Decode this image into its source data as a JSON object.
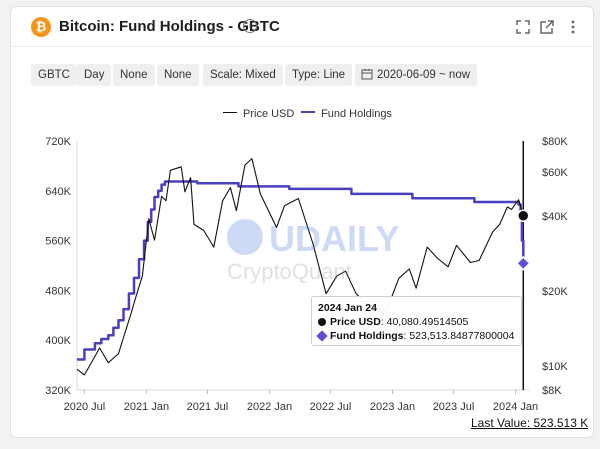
{
  "header": {
    "title": "Bitcoin: Fund Holdings - GBTC",
    "info_glyph": "i",
    "btc_glyph": "₿"
  },
  "filters": [
    "GBTC",
    "Day",
    "None",
    "None",
    "Scale: Mixed",
    "Type: Line",
    "2020-06-09 ~ now"
  ],
  "legend": [
    {
      "label": "Price USD",
      "color": "#111111"
    },
    {
      "label": "Fund Holdings",
      "color": "#4a3fbf"
    }
  ],
  "watermark": {
    "brand": "UDAILY",
    "sub": "CryptoQuant"
  },
  "tooltip": {
    "date": "2024 Jan 24",
    "price_label": "Price USD",
    "price_value": ": 40,080.49514505",
    "holdings_label": "Fund Holdings",
    "holdings_value": ": 523,513.84877800004"
  },
  "last_value": "Last Value: 523.513 K",
  "chart_data": {
    "type": "line",
    "x_ticks": [
      "2020 Jul",
      "2021 Jan",
      "2021 Jul",
      "2022 Jan",
      "2022 Jul",
      "2023 Jan",
      "2023 Jul",
      "2024 Jan"
    ],
    "left_axis": {
      "label": "Fund Holdings",
      "ticks": [
        "320K",
        "400K",
        "480K",
        "560K",
        "640K",
        "720K"
      ],
      "range": [
        320000,
        720000
      ]
    },
    "right_axis": {
      "label": "Price USD",
      "scale": "log",
      "ticks": [
        "$8K",
        "$10K",
        "$20K",
        "$40K",
        "$60K",
        "$80K"
      ],
      "range": [
        8000,
        80000
      ]
    },
    "x_range": [
      "2020-06-09",
      "2024-02-10"
    ],
    "series": [
      {
        "name": "Fund Holdings",
        "color": "#4a3fbf",
        "axis": "left",
        "points": [
          [
            "2020-06-09",
            369000
          ],
          [
            "2020-06-20",
            369000
          ],
          [
            "2020-07-01",
            385000
          ],
          [
            "2020-07-20",
            385000
          ],
          [
            "2020-08-01",
            395000
          ],
          [
            "2020-08-20",
            402000
          ],
          [
            "2020-09-10",
            408000
          ],
          [
            "2020-09-25",
            420000
          ],
          [
            "2020-10-10",
            432000
          ],
          [
            "2020-10-25",
            450000
          ],
          [
            "2020-11-10",
            475000
          ],
          [
            "2020-11-25",
            500000
          ],
          [
            "2020-12-10",
            530000
          ],
          [
            "2020-12-25",
            560000
          ],
          [
            "2021-01-05",
            590000
          ],
          [
            "2021-01-15",
            610000
          ],
          [
            "2021-01-25",
            630000
          ],
          [
            "2021-02-05",
            640000
          ],
          [
            "2021-02-15",
            650000
          ],
          [
            "2021-02-25",
            655000
          ],
          [
            "2021-03-15",
            655000
          ],
          [
            "2021-06-01",
            652000
          ],
          [
            "2021-10-01",
            647000
          ],
          [
            "2022-03-01",
            643000
          ],
          [
            "2022-09-01",
            635000
          ],
          [
            "2023-03-01",
            628000
          ],
          [
            "2023-09-01",
            622000
          ],
          [
            "2024-01-10",
            618000
          ],
          [
            "2024-01-16",
            600000
          ],
          [
            "2024-01-20",
            560000
          ],
          [
            "2024-01-24",
            523513
          ]
        ]
      },
      {
        "name": "Price USD",
        "color": "#111111",
        "axis": "right",
        "points": [
          [
            "2020-06-09",
            9700
          ],
          [
            "2020-07-01",
            9200
          ],
          [
            "2020-07-25",
            10500
          ],
          [
            "2020-08-15",
            11800
          ],
          [
            "2020-09-10",
            10300
          ],
          [
            "2020-10-10",
            11200
          ],
          [
            "2020-10-25",
            13000
          ],
          [
            "2020-11-15",
            16000
          ],
          [
            "2020-12-01",
            19000
          ],
          [
            "2020-12-20",
            23000
          ],
          [
            "2021-01-08",
            39000
          ],
          [
            "2021-01-25",
            32000
          ],
          [
            "2021-02-15",
            48000
          ],
          [
            "2021-02-28",
            46000
          ],
          [
            "2021-03-13",
            61000
          ],
          [
            "2021-04-14",
            63000
          ],
          [
            "2021-04-25",
            50000
          ],
          [
            "2021-05-12",
            57000
          ],
          [
            "2021-05-22",
            37000
          ],
          [
            "2021-06-20",
            35000
          ],
          [
            "2021-07-20",
            30000
          ],
          [
            "2021-08-15",
            46000
          ],
          [
            "2021-09-07",
            52000
          ],
          [
            "2021-09-25",
            42000
          ],
          [
            "2021-10-20",
            64000
          ],
          [
            "2021-11-10",
            68000
          ],
          [
            "2021-12-05",
            49000
          ],
          [
            "2022-01-22",
            36000
          ],
          [
            "2022-02-15",
            44000
          ],
          [
            "2022-03-28",
            47000
          ],
          [
            "2022-05-10",
            31000
          ],
          [
            "2022-06-18",
            19500
          ],
          [
            "2022-07-20",
            23000
          ],
          [
            "2022-08-15",
            24000
          ],
          [
            "2022-09-15",
            19500
          ],
          [
            "2022-11-09",
            16500
          ],
          [
            "2022-12-15",
            16800
          ],
          [
            "2023-01-20",
            22500
          ],
          [
            "2023-02-20",
            24500
          ],
          [
            "2023-03-12",
            20500
          ],
          [
            "2023-04-14",
            30000
          ],
          [
            "2023-05-15",
            27000
          ],
          [
            "2023-06-15",
            25000
          ],
          [
            "2023-07-10",
            30500
          ],
          [
            "2023-08-20",
            26000
          ],
          [
            "2023-09-15",
            26500
          ],
          [
            "2023-10-25",
            34500
          ],
          [
            "2023-11-15",
            37000
          ],
          [
            "2023-12-08",
            43500
          ],
          [
            "2023-12-20",
            42500
          ],
          [
            "2024-01-10",
            46500
          ],
          [
            "2024-01-24",
            40080
          ]
        ]
      }
    ]
  }
}
